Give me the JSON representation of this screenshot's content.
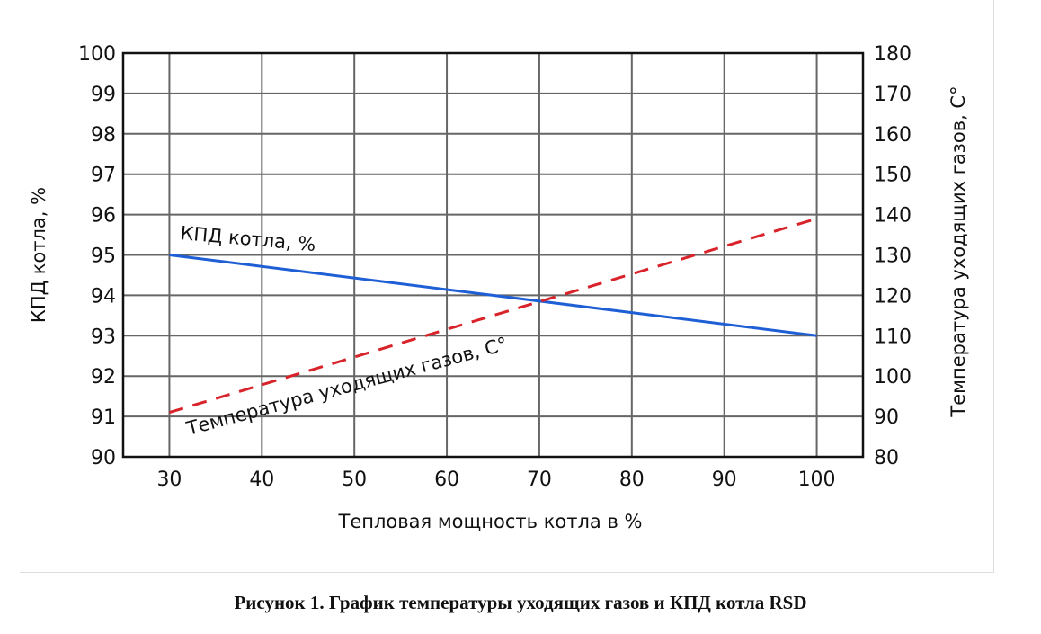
{
  "chart_data": {
    "type": "line",
    "xlabel": "Тепловая мощность котла в %",
    "ylabel": "КПД котла, %",
    "y2label": "Температура уходящих газов, С°",
    "xlim": [
      25,
      105
    ],
    "ylim": [
      90,
      100
    ],
    "y2lim": [
      80,
      180
    ],
    "xticks": [
      30,
      40,
      50,
      60,
      70,
      80,
      90,
      100
    ],
    "yticks": [
      90,
      91,
      92,
      93,
      94,
      95,
      96,
      97,
      98,
      99,
      100
    ],
    "y2ticks": [
      80,
      90,
      100,
      110,
      120,
      130,
      140,
      150,
      160,
      170,
      180
    ],
    "grid": true,
    "series": [
      {
        "name": "КПД котла, %",
        "axis": "left",
        "color": "#1f5fd6",
        "style": "solid",
        "x": [
          30,
          100
        ],
        "y": [
          95,
          93
        ]
      },
      {
        "name": "Температура уходящих газов, С°",
        "axis": "right",
        "color": "#d9232a",
        "style": "dashed",
        "x": [
          30,
          100
        ],
        "y": [
          91,
          139
        ]
      }
    ]
  },
  "caption": "Рисунок 1. График температуры уходящих газов и КПД котла RSD"
}
